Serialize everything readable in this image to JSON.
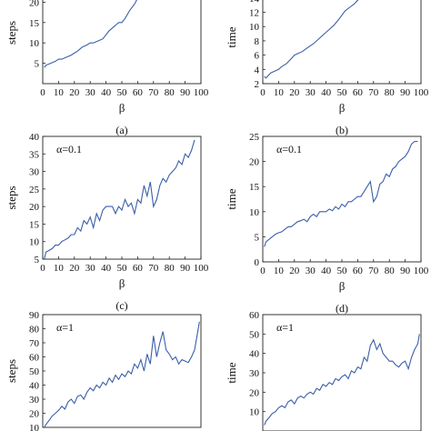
{
  "chart_data": [
    {
      "id": "a",
      "type": "line",
      "caption": "(a)",
      "xlabel": "β",
      "ylabel": "steps",
      "annotation": "",
      "xlim": [
        0,
        100
      ],
      "ylim": [
        0,
        25
      ],
      "xticks": [
        0,
        10,
        20,
        30,
        40,
        50,
        60,
        70,
        80,
        90,
        100
      ],
      "yticks": [
        5,
        10,
        15,
        20
      ],
      "series": [
        {
          "color": "#3a5fa8",
          "x": [
            1,
            2,
            5,
            8,
            10,
            12,
            15,
            18,
            20,
            22,
            25,
            28,
            30,
            32,
            35,
            38,
            40,
            42,
            45,
            48,
            50,
            52,
            55,
            58,
            60,
            62,
            63
          ],
          "y": [
            4,
            4.5,
            5,
            5.5,
            6,
            6,
            6.5,
            7,
            7.5,
            8,
            9,
            9.5,
            10,
            10,
            10.5,
            11,
            12,
            13,
            14,
            15,
            15,
            16,
            18,
            19.5,
            21,
            23,
            24
          ]
        }
      ]
    },
    {
      "id": "b",
      "type": "line",
      "caption": "(b)",
      "xlabel": "β",
      "ylabel": "time",
      "annotation": "",
      "xlim": [
        0,
        100
      ],
      "ylim": [
        2,
        15
      ],
      "xticks": [
        0,
        10,
        20,
        30,
        40,
        50,
        60,
        70,
        80,
        90,
        100
      ],
      "yticks": [
        2,
        4,
        6,
        8,
        10,
        12,
        14
      ],
      "series": [
        {
          "color": "#3a5fa8",
          "x": [
            1,
            2,
            5,
            8,
            10,
            12,
            15,
            18,
            20,
            22,
            25,
            28,
            30,
            32,
            35,
            38,
            40,
            42,
            45,
            48,
            50,
            52,
            55,
            58,
            60,
            62
          ],
          "y": [
            3,
            2.8,
            3.5,
            3.8,
            4,
            4.4,
            4.8,
            5.5,
            6,
            6.2,
            6.5,
            7,
            7.3,
            7.6,
            8.2,
            8.8,
            9.2,
            9.6,
            10.2,
            11,
            11.6,
            12.2,
            12.7,
            13.2,
            13.7,
            14
          ]
        }
      ]
    },
    {
      "id": "c",
      "type": "line",
      "caption": "(c)",
      "xlabel": "β",
      "ylabel": "steps",
      "annotation": "α=0.1",
      "xlim": [
        0,
        100
      ],
      "ylim": [
        5,
        40
      ],
      "xticks": [
        0,
        10,
        20,
        30,
        40,
        50,
        60,
        70,
        80,
        90,
        100
      ],
      "yticks": [
        5,
        10,
        15,
        20,
        25,
        30,
        35,
        40
      ],
      "series": [
        {
          "color": "#3a5fa8",
          "x": [
            1,
            2,
            4,
            6,
            8,
            10,
            12,
            14,
            16,
            18,
            20,
            22,
            24,
            26,
            28,
            30,
            32,
            34,
            36,
            38,
            40,
            42,
            44,
            46,
            48,
            50,
            52,
            54,
            56,
            58,
            60,
            62,
            64,
            66,
            68,
            70,
            72,
            74,
            76,
            78,
            80,
            82,
            84,
            86,
            88,
            90,
            92,
            94,
            96
          ],
          "y": [
            5,
            7,
            7.5,
            8,
            9,
            9,
            10,
            10.5,
            11,
            12,
            12,
            14,
            13,
            16,
            15,
            17,
            14,
            18,
            16,
            19,
            20,
            20,
            20,
            18,
            20,
            19,
            22,
            20,
            21,
            18,
            22,
            21,
            26,
            23,
            27,
            20,
            22,
            26,
            28,
            27,
            29,
            30,
            31,
            33,
            32,
            35,
            34,
            36,
            39
          ]
        }
      ]
    },
    {
      "id": "d",
      "type": "line",
      "caption": "(d)",
      "xlabel": "β",
      "ylabel": "time",
      "annotation": "α=0.1",
      "xlim": [
        0,
        100
      ],
      "ylim": [
        0,
        25
      ],
      "xticks": [
        0,
        10,
        20,
        30,
        40,
        50,
        60,
        70,
        80,
        90,
        100
      ],
      "yticks": [
        0,
        5,
        10,
        15,
        20,
        25
      ],
      "series": [
        {
          "color": "#3a5fa8",
          "x": [
            1,
            2,
            4,
            6,
            8,
            10,
            12,
            14,
            16,
            18,
            20,
            22,
            24,
            26,
            28,
            30,
            32,
            34,
            36,
            38,
            40,
            42,
            44,
            46,
            48,
            50,
            52,
            54,
            56,
            58,
            60,
            62,
            64,
            66,
            68,
            70,
            72,
            74,
            76,
            78,
            80,
            82,
            84,
            86,
            88,
            90,
            92,
            94,
            96,
            98
          ],
          "y": [
            3,
            4,
            4.5,
            5,
            5.5,
            5.8,
            6,
            6.5,
            7,
            7,
            7.5,
            8,
            8.2,
            8.5,
            8,
            9,
            9.5,
            9,
            10,
            10,
            10,
            10.5,
            10.2,
            11,
            10.5,
            11.5,
            11,
            12,
            12,
            12.5,
            13,
            13,
            14,
            15,
            16,
            12,
            13,
            15.5,
            16,
            17.5,
            17,
            18.5,
            19,
            20,
            20.5,
            21,
            22,
            23.5,
            24,
            24
          ]
        }
      ]
    },
    {
      "id": "e",
      "type": "line",
      "caption": "",
      "xlabel": "",
      "ylabel": "steps",
      "annotation": "α=1",
      "xlim": [
        0,
        100
      ],
      "ylim": [
        10,
        90
      ],
      "xticks": [],
      "yticks": [
        10,
        20,
        30,
        40,
        50,
        60,
        70,
        80,
        90
      ],
      "series": [
        {
          "color": "#3a5fa8",
          "x": [
            1,
            2,
            4,
            6,
            8,
            10,
            12,
            14,
            16,
            18,
            20,
            22,
            24,
            26,
            28,
            30,
            32,
            34,
            36,
            38,
            40,
            42,
            44,
            46,
            48,
            50,
            52,
            54,
            56,
            58,
            60,
            62,
            64,
            66,
            68,
            70,
            72,
            74,
            76,
            78,
            80,
            82,
            84,
            86,
            88,
            90,
            92,
            94,
            96,
            98,
            99
          ],
          "y": [
            10,
            12,
            15,
            18,
            20,
            22,
            25,
            23,
            28,
            30,
            27,
            32,
            33,
            30,
            35,
            38,
            36,
            40,
            38,
            42,
            40,
            45,
            42,
            47,
            44,
            48,
            46,
            50,
            48,
            55,
            52,
            58,
            50,
            62,
            55,
            75,
            60,
            70,
            78,
            65,
            62,
            58,
            60,
            55,
            58,
            57,
            56,
            60,
            65,
            78,
            85
          ]
        }
      ]
    },
    {
      "id": "f",
      "type": "line",
      "caption": "",
      "xlabel": "",
      "ylabel": "time",
      "annotation": "α=1",
      "xlim": [
        0,
        100
      ],
      "ylim": [
        0,
        60
      ],
      "xticks": [],
      "yticks": [
        10,
        20,
        30,
        40,
        50,
        60
      ],
      "series": [
        {
          "color": "#3a5fa8",
          "x": [
            1,
            2,
            4,
            6,
            8,
            10,
            12,
            14,
            16,
            18,
            20,
            22,
            24,
            26,
            28,
            30,
            32,
            34,
            36,
            38,
            40,
            42,
            44,
            46,
            48,
            50,
            52,
            54,
            56,
            58,
            60,
            62,
            64,
            66,
            68,
            70,
            72,
            74,
            76,
            78,
            80,
            82,
            84,
            86,
            88,
            90,
            92,
            94,
            96,
            98,
            99
          ],
          "y": [
            3,
            5,
            7,
            9,
            10,
            12,
            13,
            12,
            15,
            16,
            14,
            17,
            18,
            17,
            19,
            20,
            19,
            22,
            21,
            24,
            23,
            25,
            24,
            27,
            26,
            28,
            29,
            27,
            31,
            30,
            33,
            32,
            38,
            36,
            44,
            47,
            42,
            45,
            40,
            38,
            36,
            36,
            34,
            33,
            35,
            36,
            32,
            38,
            42,
            45,
            50
          ]
        }
      ]
    }
  ]
}
